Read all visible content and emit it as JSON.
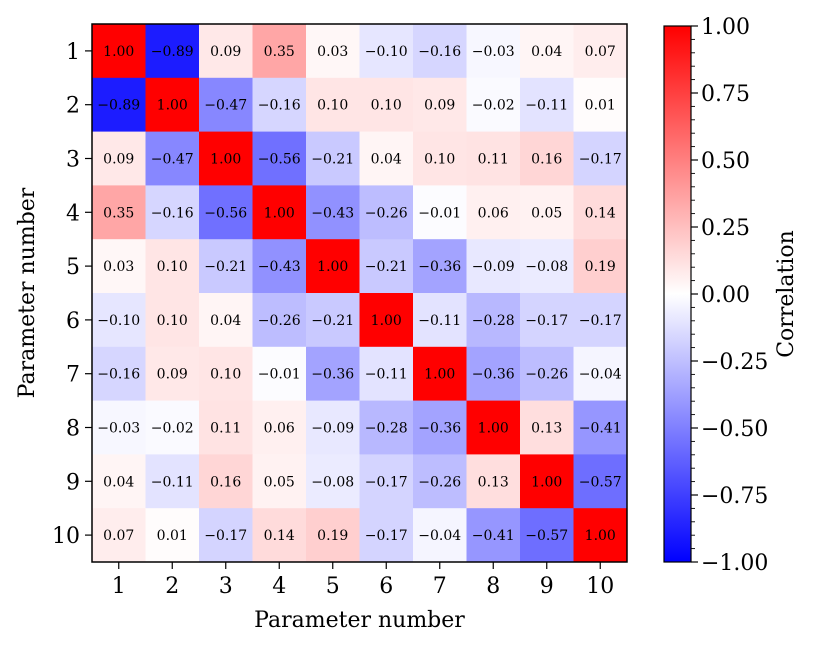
{
  "chart_data": {
    "type": "heatmap",
    "title": "",
    "xlabel": "Parameter number",
    "ylabel": "Parameter number",
    "x_categories": [
      "1",
      "2",
      "3",
      "4",
      "5",
      "6",
      "7",
      "8",
      "9",
      "10"
    ],
    "y_categories": [
      "1",
      "2",
      "3",
      "4",
      "5",
      "6",
      "7",
      "8",
      "9",
      "10"
    ],
    "values": [
      [
        1.0,
        -0.89,
        0.09,
        0.35,
        0.03,
        -0.1,
        -0.16,
        -0.03,
        0.04,
        0.07
      ],
      [
        -0.89,
        1.0,
        -0.47,
        -0.16,
        0.1,
        0.1,
        0.09,
        -0.02,
        -0.11,
        0.01
      ],
      [
        0.09,
        -0.47,
        1.0,
        -0.56,
        -0.21,
        0.04,
        0.1,
        0.11,
        0.16,
        -0.17
      ],
      [
        0.35,
        -0.16,
        -0.56,
        1.0,
        -0.43,
        -0.26,
        -0.01,
        0.06,
        0.05,
        0.14
      ],
      [
        0.03,
        0.1,
        -0.21,
        -0.43,
        1.0,
        -0.21,
        -0.36,
        -0.09,
        -0.08,
        0.19
      ],
      [
        -0.1,
        0.1,
        0.04,
        -0.26,
        -0.21,
        1.0,
        -0.11,
        -0.28,
        -0.17,
        -0.17
      ],
      [
        -0.16,
        0.09,
        0.1,
        -0.01,
        -0.36,
        -0.11,
        1.0,
        -0.36,
        -0.26,
        -0.04
      ],
      [
        -0.03,
        -0.02,
        0.11,
        0.06,
        -0.09,
        -0.28,
        -0.36,
        1.0,
        0.13,
        -0.41
      ],
      [
        0.04,
        -0.11,
        0.16,
        0.05,
        -0.08,
        -0.17,
        -0.26,
        0.13,
        1.0,
        -0.57
      ],
      [
        0.07,
        0.01,
        -0.17,
        0.14,
        0.19,
        -0.17,
        -0.04,
        -0.41,
        -0.57,
        1.0
      ]
    ],
    "colormap": "bwr",
    "colormap_colors": {
      "low": "#0000ff",
      "mid": "#ffffff",
      "high": "#ff0000"
    },
    "vmin": -1.0,
    "vmax": 1.0,
    "colorbar": {
      "label": "Correlation",
      "ticks": [
        "1.00",
        "0.75",
        "0.50",
        "0.25",
        "0.00",
        "−0.25",
        "−0.50",
        "−0.75",
        "−1.00"
      ],
      "tick_values": [
        1.0,
        0.75,
        0.5,
        0.25,
        0.0,
        -0.25,
        -0.5,
        -0.75,
        -1.0
      ],
      "placement": "right"
    }
  }
}
